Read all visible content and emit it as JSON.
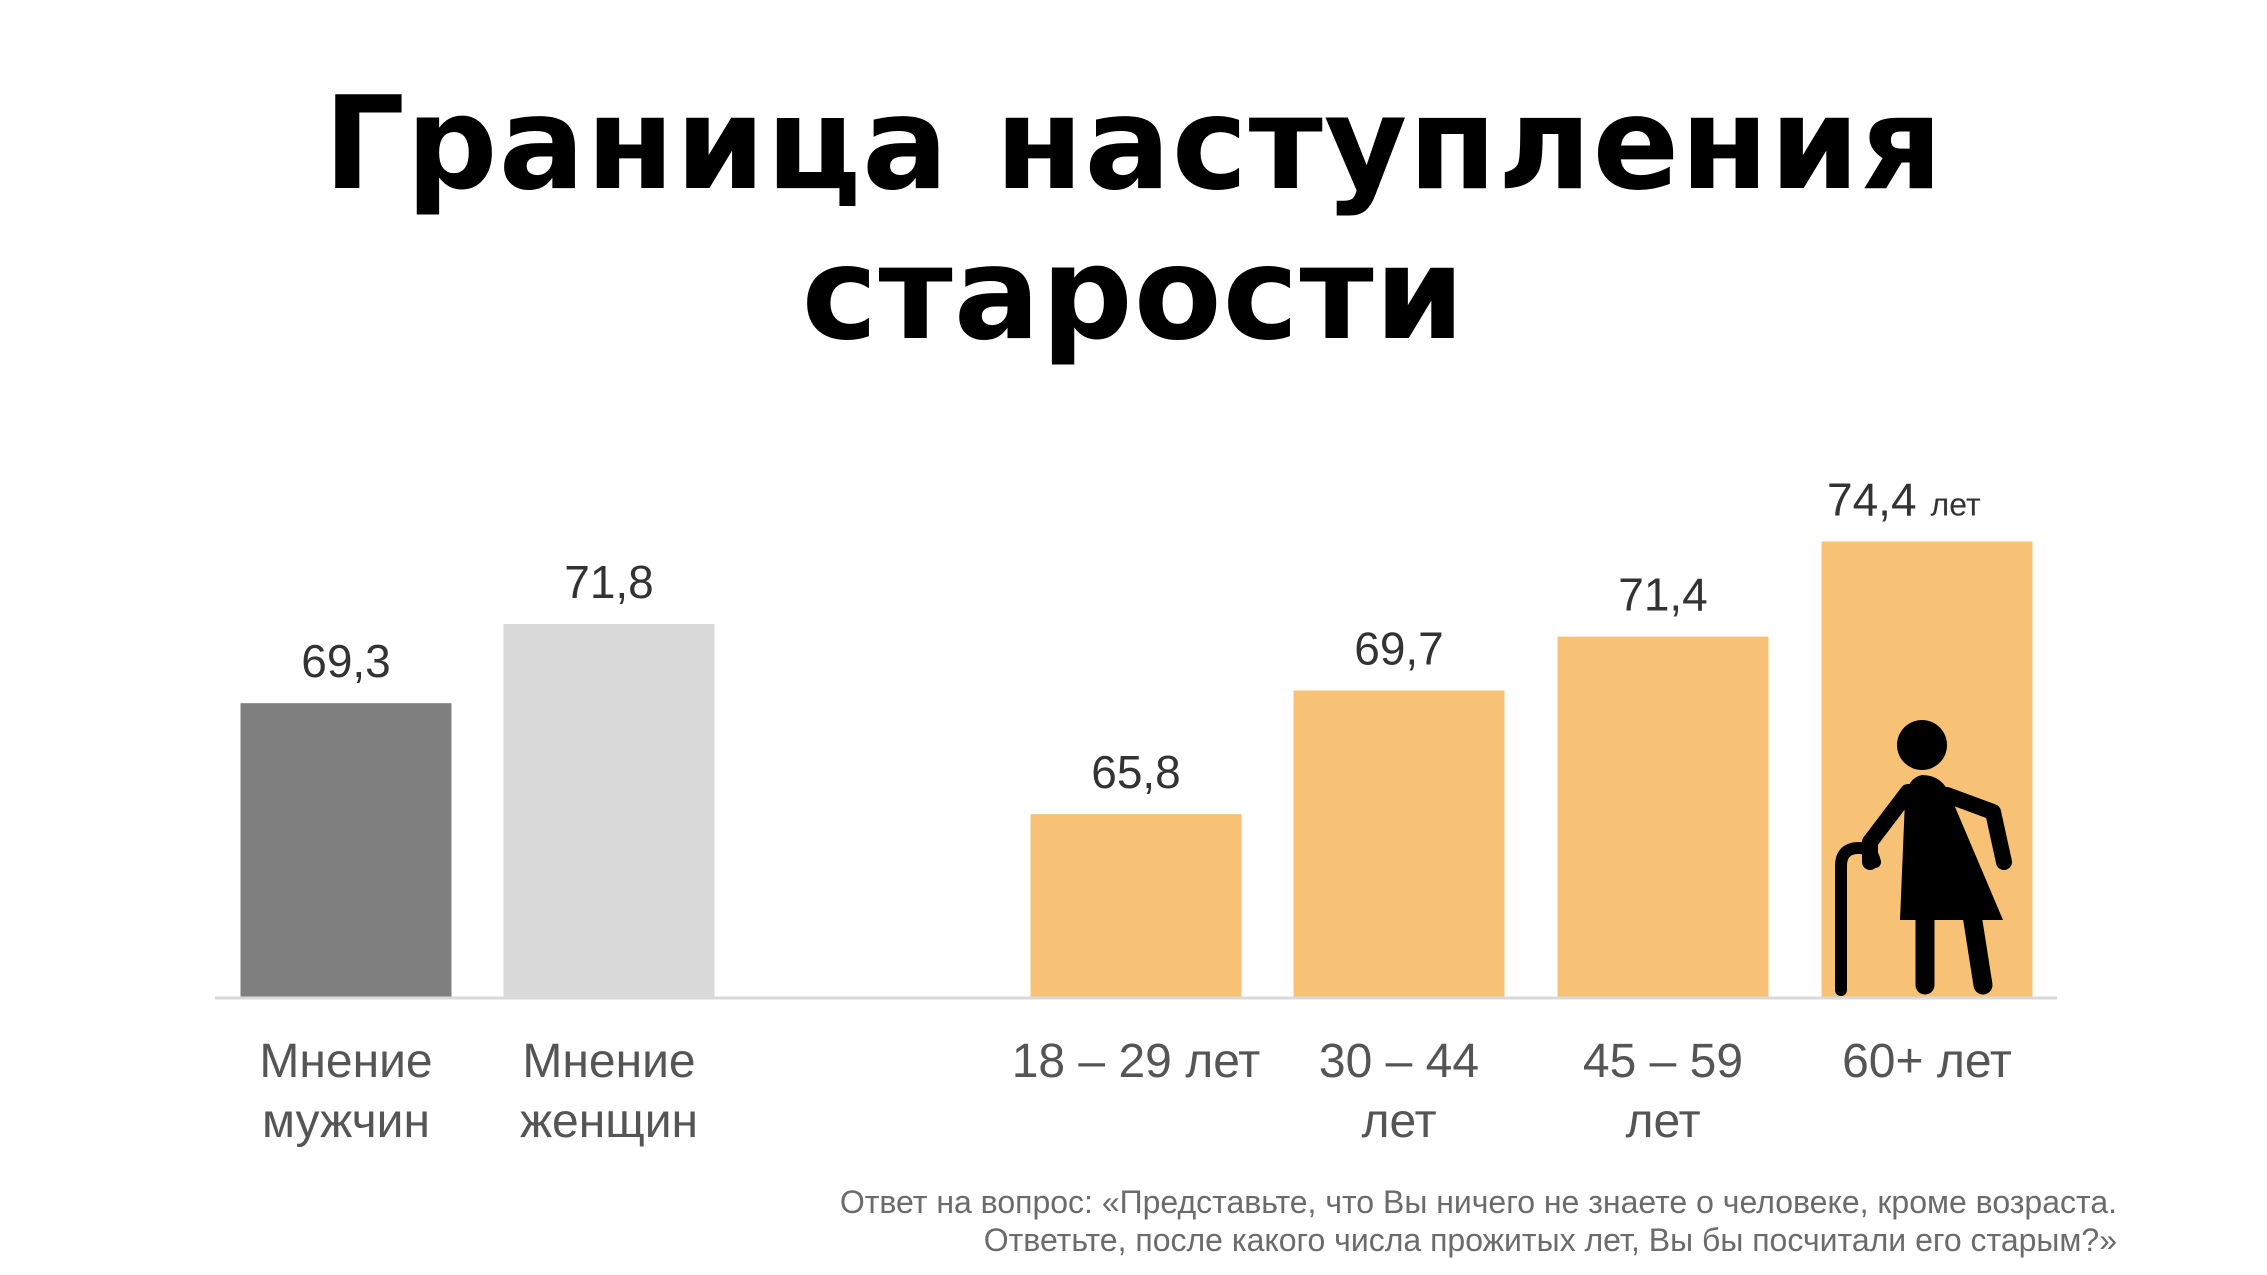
{
  "title": "Граница наступления старости",
  "chart_data": {
    "type": "bar",
    "title": "Граница наступления старости",
    "value_unit": "лет",
    "ylim": [
      60,
      75
    ],
    "categories": [
      [
        "Мнение",
        "мужчин"
      ],
      [
        "Мнение",
        "женщин"
      ],
      [
        "18 – 29 лет"
      ],
      [
        "30 – 44",
        "лет"
      ],
      [
        "45 – 59",
        "лет"
      ],
      [
        "60+ лет"
      ]
    ],
    "values": [
      69.3,
      71.8,
      65.8,
      69.7,
      71.4,
      74.4
    ],
    "value_labels": [
      "69,3",
      "71,8",
      "65,8",
      "69,7",
      "71,4",
      "74,4"
    ],
    "colors": [
      "#7f7f7f",
      "#d9d9d9",
      "#f7c275",
      "#f7c275",
      "#f7c275",
      "#f7c275"
    ],
    "axis_color": "#d9d9d9",
    "icon": "elderly-person-with-cane-icon"
  },
  "footnote": {
    "line1": "Ответ на вопрос: «Представьте, что Вы ничего не знаете о человеке, кроме возраста.",
    "line2": "Ответьте, после какого числа прожитых лет, Вы бы посчитали его старым?»"
  }
}
